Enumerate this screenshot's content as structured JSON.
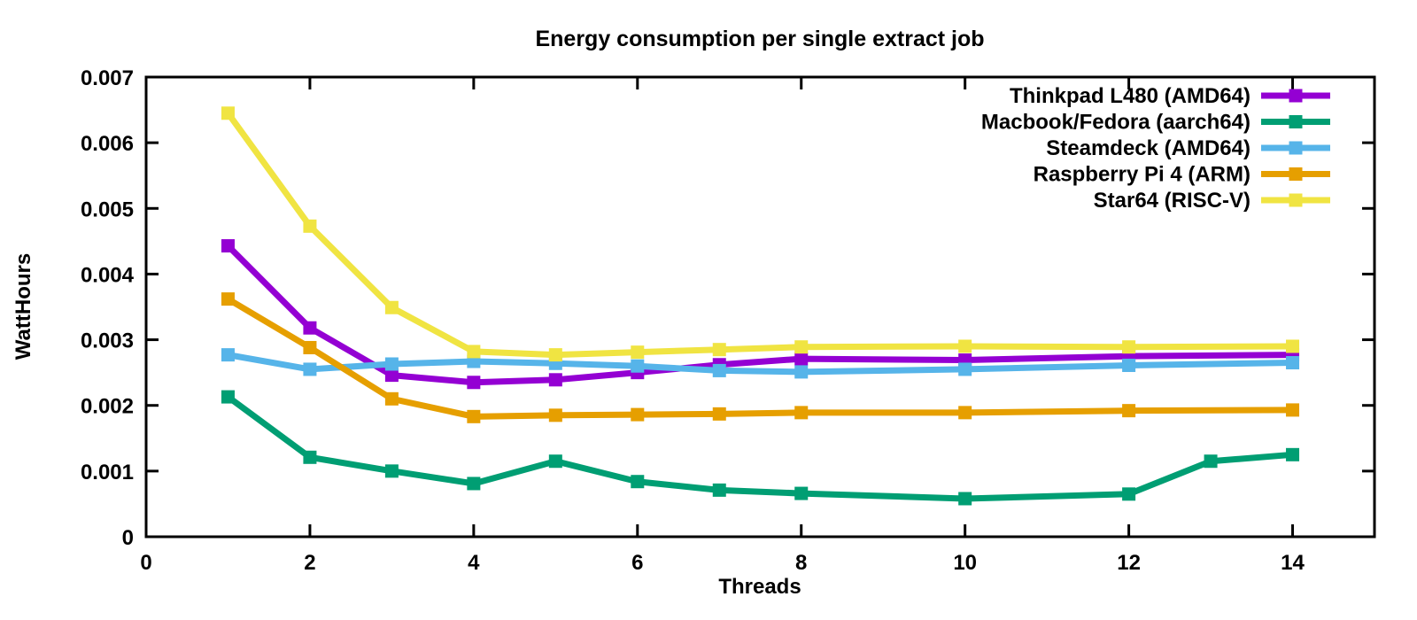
{
  "page": {
    "background": "#ffffff"
  },
  "chart_data": {
    "type": "line",
    "title": "Energy consumption per single extract job",
    "xlabel": "Threads",
    "ylabel": "WattHours",
    "xlim": [
      0,
      15
    ],
    "ylim": [
      0,
      0.007
    ],
    "xticks": [
      0,
      2,
      4,
      6,
      8,
      10,
      12,
      14
    ],
    "yticks": [
      0,
      0.001,
      0.002,
      0.003,
      0.004,
      0.005,
      0.006,
      0.007
    ],
    "ytick_labels": [
      "0",
      "0.001",
      "0.002",
      "0.003",
      "0.004",
      "0.005",
      "0.006",
      "0.007"
    ],
    "grid": false,
    "legend_position": "top-right-inside",
    "point_style": "filled-square",
    "axis_color": "#000000",
    "text_color": "#000000",
    "series": [
      {
        "name": "Thinkpad L480 (AMD64)",
        "color": "#9400d3",
        "x": [
          1,
          2,
          3,
          4,
          5,
          6,
          7,
          8,
          10,
          12,
          14
        ],
        "y": [
          0.00443,
          0.00318,
          0.00246,
          0.00235,
          0.00239,
          0.0025,
          0.00262,
          0.00271,
          0.00269,
          0.00275,
          0.00277
        ]
      },
      {
        "name": "Macbook/Fedora (aarch64)",
        "color": "#009e73",
        "x": [
          1,
          2,
          3,
          4,
          5,
          6,
          7,
          8,
          10,
          12,
          13,
          14
        ],
        "y": [
          0.00213,
          0.00121,
          0.001,
          0.00081,
          0.00115,
          0.00084,
          0.00071,
          0.00066,
          0.00058,
          0.00065,
          0.00115,
          0.00125
        ]
      },
      {
        "name": "Steamdeck (AMD64)",
        "color": "#56b4e9",
        "x": [
          1,
          2,
          3,
          4,
          5,
          6,
          7,
          8,
          10,
          12,
          14
        ],
        "y": [
          0.00277,
          0.00255,
          0.00263,
          0.00267,
          0.00264,
          0.0026,
          0.00253,
          0.00251,
          0.00255,
          0.00261,
          0.00265
        ]
      },
      {
        "name": "Raspberry Pi 4 (ARM)",
        "color": "#e69f00",
        "x": [
          1,
          2,
          3,
          4,
          5,
          6,
          7,
          8,
          10,
          12,
          14
        ],
        "y": [
          0.00362,
          0.00288,
          0.0021,
          0.00183,
          0.00185,
          0.00186,
          0.00187,
          0.00189,
          0.00189,
          0.00192,
          0.00193
        ]
      },
      {
        "name": "Star64 (RISC-V)",
        "color": "#f0e442",
        "x": [
          1,
          2,
          3,
          4,
          5,
          6,
          7,
          8,
          10,
          12,
          14
        ],
        "y": [
          0.00645,
          0.00473,
          0.00349,
          0.00282,
          0.00277,
          0.00281,
          0.00285,
          0.00289,
          0.0029,
          0.00289,
          0.0029
        ]
      }
    ]
  }
}
